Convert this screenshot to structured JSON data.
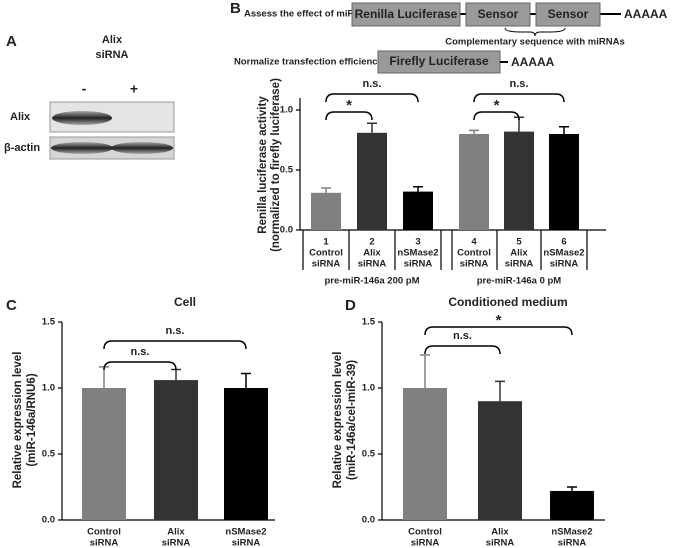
{
  "panels": [
    "A",
    "B",
    "C",
    "D"
  ],
  "blot": {
    "title": "Alix",
    "subtitle": "siRNA",
    "lanes": [
      "-",
      "+"
    ],
    "rows": [
      "Alix",
      "β-actin"
    ]
  },
  "diagram": {
    "label1": "Assess the effect of miRNA :",
    "boxes1": [
      "Renilla Luciferase",
      "Sensor",
      "Sensor"
    ],
    "tail1": "AAAAA",
    "note": "Complementary sequence with miRNAs",
    "label2": "Normalize transfection efficiency :",
    "boxes2": [
      "Firefly Luciferase"
    ],
    "tail2": "AAAAA"
  },
  "chart_data": [
    {
      "type": "bar",
      "ylabel": [
        "Renilla luciferase activity",
        "(normalized to firefly luciferase)"
      ],
      "categories": [
        [
          "1",
          "Control",
          "siRNA"
        ],
        [
          "2",
          "Alix",
          "siRNA"
        ],
        [
          "3",
          "nSMase2",
          "siRNA"
        ],
        [
          "4",
          "Control",
          "siRNA"
        ],
        [
          "5",
          "Alix",
          "siRNA"
        ],
        [
          "6",
          "nSMase2",
          "siRNA"
        ]
      ],
      "values": [
        0.31,
        0.81,
        0.32,
        0.8,
        0.82,
        0.8
      ],
      "errors": [
        0.04,
        0.08,
        0.04,
        0.03,
        0.12,
        0.06
      ],
      "colors": [
        "#808080",
        "#333333",
        "#000000",
        "#808080",
        "#333333",
        "#000000"
      ],
      "group_labels": [
        "pre-miR-146a 200 pM",
        "pre-miR-146a 0 pM"
      ],
      "annotations": [
        {
          "text": "*",
          "between": [
            0,
            1
          ]
        },
        {
          "text": "n.s.",
          "between": [
            0,
            2
          ]
        },
        {
          "text": "*",
          "between": [
            3,
            4
          ]
        },
        {
          "text": "n.s.",
          "between": [
            3,
            5
          ]
        }
      ],
      "ylim": [
        0,
        1.1
      ],
      "yticks": [
        {
          "value": 0,
          "label": "0.0"
        },
        {
          "value": 0.5,
          "label": "0.5"
        },
        {
          "value": 1,
          "label": "1.0"
        }
      ]
    },
    {
      "type": "bar",
      "title": "Cell",
      "ylabel": [
        "Relative expression level",
        "(miR-146a/RNU6)"
      ],
      "categories": [
        [
          "Control",
          "siRNA"
        ],
        [
          "Alix",
          "siRNA"
        ],
        [
          "nSMase2",
          "siRNA"
        ]
      ],
      "values": [
        1.0,
        1.06,
        1.0
      ],
      "errors": [
        0.16,
        0.08,
        0.11
      ],
      "colors": [
        "#808080",
        "#333333",
        "#000000"
      ],
      "annotations": [
        {
          "text": "n.s.",
          "between": [
            0,
            1
          ]
        },
        {
          "text": "n.s.",
          "between": [
            0,
            2
          ]
        }
      ],
      "ylim": [
        0,
        1.5
      ],
      "yticks": [
        {
          "value": 0,
          "label": "0.0"
        },
        {
          "value": 0.5,
          "label": "0.5"
        },
        {
          "value": 1,
          "label": "1.0"
        },
        {
          "value": 1.5,
          "label": "1.5"
        }
      ]
    },
    {
      "type": "bar",
      "title": "Conditioned medium",
      "ylabel": [
        "Relative expression level",
        "(miR-146a/cel-miR-39)"
      ],
      "categories": [
        [
          "Control",
          "siRNA"
        ],
        [
          "Alix",
          "siRNA"
        ],
        [
          "nSMase2",
          "siRNA"
        ]
      ],
      "values": [
        1.0,
        0.9,
        0.22
      ],
      "errors": [
        0.25,
        0.15,
        0.03
      ],
      "colors": [
        "#808080",
        "#333333",
        "#000000"
      ],
      "annotations": [
        {
          "text": "n.s.",
          "between": [
            0,
            1
          ]
        },
        {
          "text": "*",
          "between": [
            0,
            2
          ]
        }
      ],
      "ylim": [
        0,
        1.5
      ],
      "yticks": [
        {
          "value": 0,
          "label": "0.0"
        },
        {
          "value": 0.5,
          "label": "0.5"
        },
        {
          "value": 1,
          "label": "1.0"
        },
        {
          "value": 1.5,
          "label": "1.5"
        }
      ]
    }
  ]
}
